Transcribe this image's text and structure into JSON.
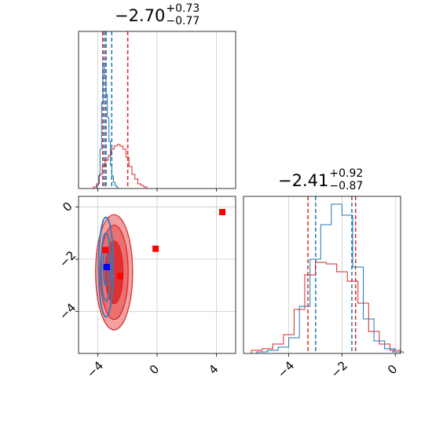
{
  "colors": {
    "red": "#d62728",
    "blue": "#1f77b4",
    "grid": "#cccccc",
    "marker_red": "#ff0000",
    "marker_blue": "#0000ff",
    "fill_red_dark": "#e03030",
    "fill_red_light": "#f2a0a0"
  },
  "chart_data": [
    {
      "type": "histogram",
      "panel": "top-left",
      "title": {
        "value": "−2.70",
        "plus": "+0.73",
        "minus": "−0.77"
      },
      "xlim": [
        -5.3,
        5.3
      ],
      "xticks": [
        -4,
        0,
        4
      ],
      "xtick_labels": [
        "−4",
        "0",
        "4"
      ],
      "ylim": [
        0,
        1.0
      ],
      "quantile_lines": [
        {
          "color": "red",
          "x": [
            -3.67,
            -3.46,
            -1.98
          ]
        },
        {
          "color": "blue",
          "x": [
            -3.57,
            -3.44,
            -3.06
          ]
        }
      ],
      "series": [
        {
          "color": "red",
          "x": [
            -4.2,
            -4.0,
            -3.8,
            -3.6,
            -3.4,
            -3.2,
            -3.0,
            -2.8,
            -2.6,
            -2.4,
            -2.2,
            -2.0,
            -1.8,
            -1.6,
            -1.4,
            -1.2,
            -1.0,
            -0.8
          ],
          "y": [
            0.01,
            0.03,
            0.09,
            0.14,
            0.18,
            0.21,
            0.25,
            0.27,
            0.28,
            0.27,
            0.25,
            0.2,
            0.14,
            0.09,
            0.06,
            0.03,
            0.02,
            0.01
          ]
        },
        {
          "color": "blue",
          "x": [
            -4.0,
            -3.9,
            -3.8,
            -3.7,
            -3.6,
            -3.5,
            -3.4,
            -3.3,
            -3.2,
            -3.1,
            -3.0,
            -2.9,
            -2.8,
            -2.7
          ],
          "y": [
            0.02,
            0.08,
            0.25,
            0.55,
            0.8,
            0.72,
            0.6,
            0.45,
            0.3,
            0.15,
            0.08,
            0.04,
            0.02,
            0.01
          ]
        }
      ]
    },
    {
      "type": "contour",
      "panel": "bottom-left",
      "xlim": [
        -5.3,
        5.3
      ],
      "ylim": [
        -5.6,
        0.4
      ],
      "xticks": [
        -4,
        0,
        4
      ],
      "xtick_labels": [
        "−4",
        "0",
        "4"
      ],
      "yticks": [
        0,
        -2,
        -4
      ],
      "ytick_labels": [
        "0",
        "−2",
        "−4"
      ],
      "red_levels": [
        {
          "cx": -2.9,
          "cy": -2.5,
          "rx": 1.25,
          "ry": 2.2
        },
        {
          "cx": -2.9,
          "cy": -2.5,
          "rx": 0.95,
          "ry": 1.8
        },
        {
          "cx": -2.9,
          "cy": -2.5,
          "rx": 0.6,
          "ry": 1.2
        }
      ],
      "blue_levels": [
        {
          "cx": -3.45,
          "cy": -2.3,
          "rx": 0.5,
          "ry": 1.9
        },
        {
          "cx": -3.45,
          "cy": -2.3,
          "rx": 0.33,
          "ry": 1.3
        },
        {
          "cx": -3.45,
          "cy": -2.3,
          "rx": 0.18,
          "ry": 0.7
        }
      ],
      "markers": [
        {
          "color": "marker_red",
          "x": 4.4,
          "y": -0.2
        },
        {
          "color": "marker_red",
          "x": -0.1,
          "y": -1.6
        },
        {
          "color": "marker_red",
          "x": -3.5,
          "y": -1.65
        },
        {
          "color": "marker_red",
          "x": -2.5,
          "y": -2.65
        },
        {
          "color": "marker_blue",
          "x": -3.4,
          "y": -2.3
        }
      ]
    },
    {
      "type": "histogram",
      "panel": "bottom-right",
      "title": {
        "value": "−2.41",
        "plus": "+0.92",
        "minus": "−0.87"
      },
      "xlim": [
        -5.7,
        0.2
      ],
      "xticks": [
        -4,
        -2,
        0
      ],
      "xtick_labels": [
        "−4",
        "−2",
        "0"
      ],
      "ylim": [
        0,
        1.0
      ],
      "quantile_lines": [
        {
          "color": "red",
          "x": [
            -3.28,
            -1.49
          ]
        },
        {
          "color": "blue",
          "x": [
            -2.99,
            -1.63
          ]
        }
      ],
      "series": [
        {
          "color": "red",
          "x": [
            -5.2,
            -4.8,
            -4.4,
            -4.0,
            -3.6,
            -3.2,
            -2.8,
            -2.4,
            -2.0,
            -1.6,
            -1.2,
            -0.8,
            -0.4,
            0.0
          ],
          "y": [
            0.02,
            0.03,
            0.06,
            0.12,
            0.28,
            0.5,
            0.58,
            0.57,
            0.52,
            0.46,
            0.32,
            0.14,
            0.06,
            0.02
          ]
        },
        {
          "color": "blue",
          "x": [
            -5.0,
            -4.6,
            -4.2,
            -3.8,
            -3.4,
            -3.0,
            -2.6,
            -2.2,
            -1.8,
            -1.4,
            -1.0,
            -0.6,
            -0.2,
            0.1
          ],
          "y": [
            0.01,
            0.02,
            0.04,
            0.1,
            0.3,
            0.6,
            0.82,
            0.95,
            0.88,
            0.55,
            0.22,
            0.08,
            0.03,
            0.01
          ]
        }
      ]
    }
  ]
}
